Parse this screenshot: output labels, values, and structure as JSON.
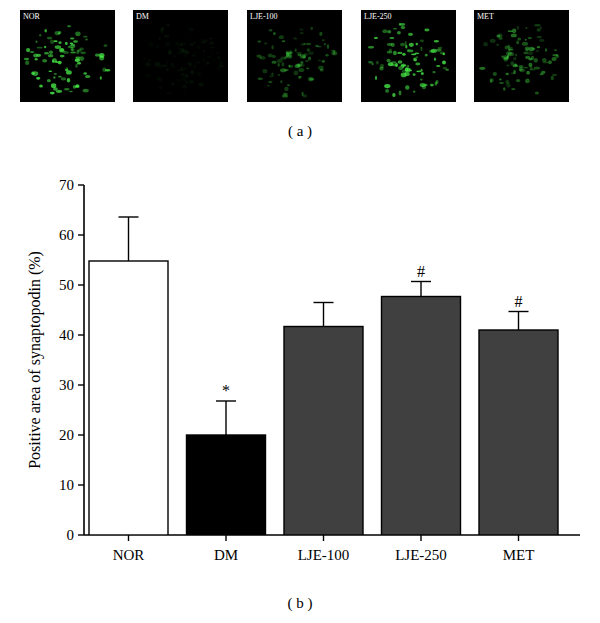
{
  "figure": {
    "image_labels": [
      "NOR",
      "DM",
      "LJE-100",
      "LJE-250",
      "MET"
    ],
    "panels": [
      "( a )",
      "( b )"
    ]
  },
  "chart_data": {
    "type": "bar",
    "y_label": "Positive area of synaptopodin (%)",
    "categories": [
      "NOR",
      "DM",
      "LJE-100",
      "LJE-250",
      "MET"
    ],
    "values": [
      54.8,
      20.0,
      41.7,
      47.7,
      41.0
    ],
    "errors": [
      8.8,
      6.8,
      4.8,
      3.0,
      3.7
    ],
    "colors": [
      "#ffffff",
      "#000000",
      "#404040",
      "#404040",
      "#404040"
    ],
    "annotations": [
      {
        "category": "DM",
        "text": "*"
      },
      {
        "category": "LJE-250",
        "text": "#"
      },
      {
        "category": "MET",
        "text": "#"
      }
    ],
    "ylim": [
      0,
      70
    ],
    "yticks": [
      0,
      10,
      20,
      30,
      40,
      50,
      60,
      70
    ],
    "grid": false
  }
}
